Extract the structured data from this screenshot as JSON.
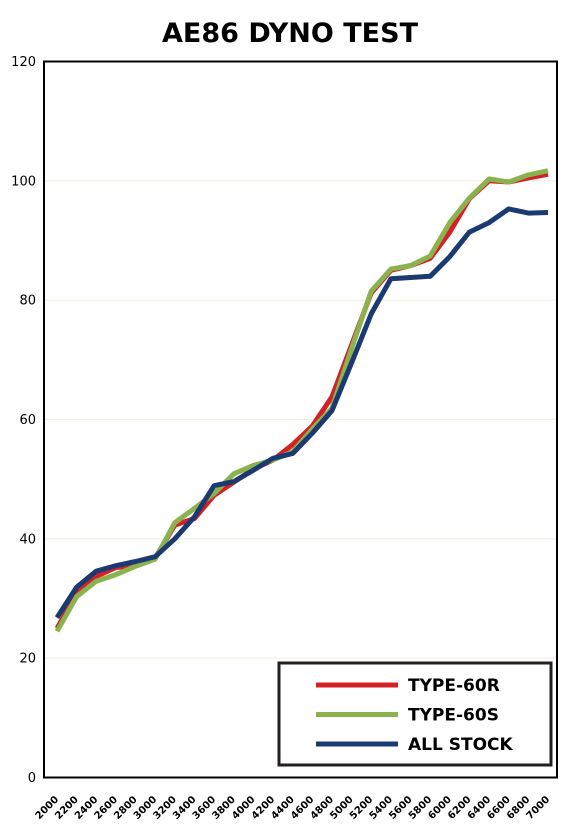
{
  "chart_data": {
    "type": "line",
    "title": "AE86 DYNO TEST",
    "xlabel": "",
    "ylabel": "",
    "x": [
      2000,
      2200,
      2400,
      2600,
      2800,
      3000,
      3200,
      3400,
      3600,
      3800,
      4000,
      4200,
      4400,
      4600,
      4800,
      5000,
      5200,
      5400,
      5600,
      5800,
      6000,
      6200,
      6400,
      6600,
      6800,
      7000
    ],
    "ylim": [
      0,
      120
    ],
    "yticks": [
      0,
      20,
      40,
      60,
      80,
      100,
      120
    ],
    "grid": true,
    "legend_position": "bottom-right",
    "series": [
      {
        "name": "TYPE-60R",
        "color": "#d42027",
        "values": [
          25,
          30.8,
          33.7,
          35.2,
          35.5,
          36.8,
          42.3,
          43.4,
          47.3,
          49.5,
          51.7,
          53.2,
          55.8,
          58.9,
          63.8,
          72.5,
          81.2,
          85,
          85.8,
          87,
          91.4,
          97,
          100,
          99.8,
          100.5,
          101.1
        ]
      },
      {
        "name": "TYPE-60S",
        "color": "#8bb34d",
        "values": [
          24.5,
          30.3,
          32.9,
          34,
          35.4,
          36.6,
          42.7,
          45.1,
          47.6,
          50.9,
          52.3,
          53.2,
          54.6,
          58.4,
          61.9,
          71.9,
          81.5,
          85.2,
          85.8,
          87.4,
          93,
          97.1,
          100.3,
          99.8,
          101,
          101.7
        ]
      },
      {
        "name": "ALL STOCK",
        "color": "#1b3a72",
        "values": [
          26.8,
          31.9,
          34.6,
          35.5,
          36.2,
          37,
          40,
          43.7,
          48.9,
          49.6,
          51.5,
          53.5,
          54.3,
          57.7,
          61.5,
          69.5,
          77.7,
          83.6,
          83.8,
          84,
          87.3,
          91.4,
          93,
          95.3,
          94.6,
          94.7
        ]
      }
    ]
  }
}
